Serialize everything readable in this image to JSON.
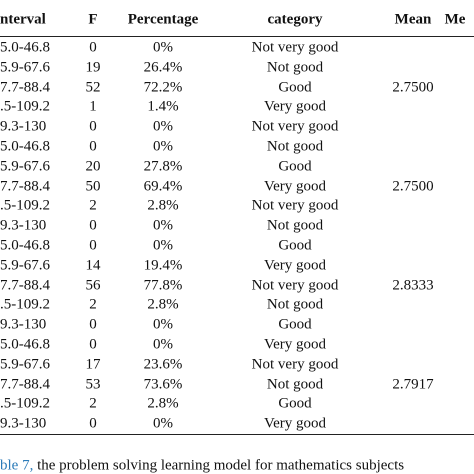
{
  "table": {
    "header": [
      "nterval",
      "F",
      "Percentage",
      "category",
      "Mean",
      "Me"
    ],
    "rows": [
      [
        "5.0-46.8",
        "0",
        "0%",
        "Not very good",
        null
      ],
      [
        "5.9-67.6",
        "19",
        "26.4%",
        "Not good",
        null
      ],
      [
        "7.7-88.4",
        "52",
        "72.2%",
        "Good",
        "2.7500"
      ],
      [
        ".5-109.2",
        "1",
        "1.4%",
        "Very good",
        null
      ],
      [
        "9.3-130",
        "0",
        "0%",
        "Not very good",
        null
      ],
      [
        "5.0-46.8",
        "0",
        "0%",
        "Not good",
        null
      ],
      [
        "5.9-67.6",
        "20",
        "27.8%",
        "Good",
        null
      ],
      [
        "7.7-88.4",
        "50",
        "69.4%",
        "Very good",
        "2.7500"
      ],
      [
        ".5-109.2",
        "2",
        "2.8%",
        "Not very good",
        null
      ],
      [
        "9.3-130",
        "0",
        "0%",
        "Not good",
        null
      ],
      [
        "5.0-46.8",
        "0",
        "0%",
        "Good",
        null
      ],
      [
        "5.9-67.6",
        "14",
        "19.4%",
        "Very good",
        null
      ],
      [
        "7.7-88.4",
        "56",
        "77.8%",
        "Not very good",
        "2.8333"
      ],
      [
        ".5-109.2",
        "2",
        "2.8%",
        "Not good",
        null
      ],
      [
        "9.3-130",
        "0",
        "0%",
        "Good",
        null
      ],
      [
        "5.0-46.8",
        "0",
        "0%",
        "Very good",
        null
      ],
      [
        "5.9-67.6",
        "17",
        "23.6%",
        "Not very good",
        null
      ],
      [
        "7.7-88.4",
        "53",
        "73.6%",
        "Not good",
        "2.7917"
      ],
      [
        ".5-109.2",
        "2",
        "2.8%",
        "Good",
        null
      ],
      [
        "9.3-130",
        "0",
        "0%",
        "Very good",
        null
      ]
    ]
  },
  "caption": {
    "ref": "ble 7,",
    "text": " the problem solving learning model for mathematics subjects"
  }
}
